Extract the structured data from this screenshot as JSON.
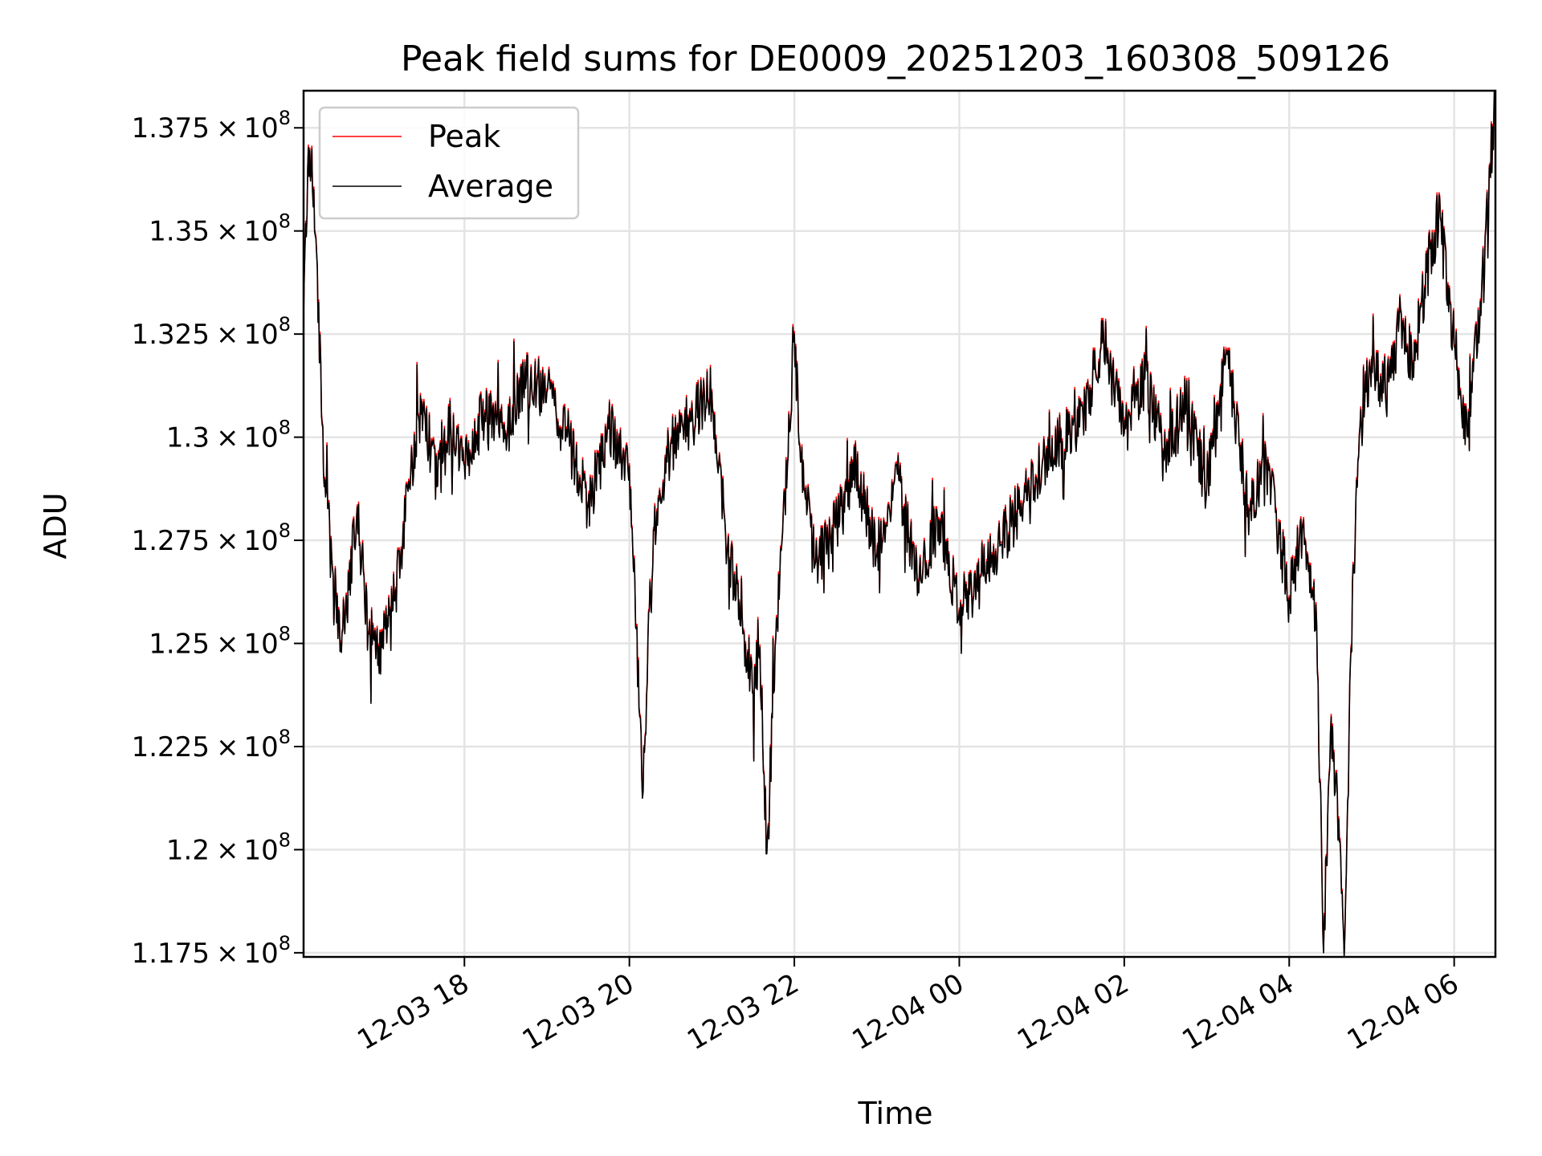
{
  "chart_data": {
    "type": "line",
    "title": "Peak field sums for DE0009_20251203_160308_509126",
    "xlabel": "Time",
    "ylabel": "ADU",
    "grid": true,
    "legend_position": "top-left",
    "xlim": [
      "2025-12-03 16:03",
      "2025-12-04 06:30"
    ],
    "ylim": [
      117400000,
      138400000
    ],
    "x_ticks": [
      {
        "value": "2025-12-03 18:00",
        "label": "12-03 18"
      },
      {
        "value": "2025-12-03 20:00",
        "label": "12-03 20"
      },
      {
        "value": "2025-12-03 22:00",
        "label": "12-03 22"
      },
      {
        "value": "2025-12-04 00:00",
        "label": "12-04 00"
      },
      {
        "value": "2025-12-04 02:00",
        "label": "12-04 02"
      },
      {
        "value": "2025-12-04 04:00",
        "label": "12-04 04"
      },
      {
        "value": "2025-12-04 06:00",
        "label": "12-04 06"
      }
    ],
    "y_ticks": [
      {
        "value": 117500000,
        "mantissa": "1.175",
        "exponent": "8"
      },
      {
        "value": 120000000,
        "mantissa": "1.2",
        "exponent": "8"
      },
      {
        "value": 122500000,
        "mantissa": "1.225",
        "exponent": "8"
      },
      {
        "value": 125000000,
        "mantissa": "1.25",
        "exponent": "8"
      },
      {
        "value": 127500000,
        "mantissa": "1.275",
        "exponent": "8"
      },
      {
        "value": 130000000,
        "mantissa": "1.3",
        "exponent": "8"
      },
      {
        "value": 132500000,
        "mantissa": "1.325",
        "exponent": "8"
      },
      {
        "value": 135000000,
        "mantissa": "1.35",
        "exponent": "8"
      },
      {
        "value": 137500000,
        "mantissa": "1.375",
        "exponent": "8"
      }
    ],
    "times_symbol": "×",
    "exponent_base": "10",
    "series": [
      {
        "name": "Peak",
        "color": "#ff0000",
        "offset_above_average": 60000,
        "x": [
          "2025-12-03 16:03",
          "2025-12-03 16:06",
          "2025-12-03 16:09",
          "2025-12-03 16:12",
          "2025-12-03 16:18",
          "2025-12-03 16:24",
          "2025-12-03 16:30",
          "2025-12-03 16:36",
          "2025-12-03 16:42",
          "2025-12-03 16:50",
          "2025-12-03 17:00",
          "2025-12-03 17:10",
          "2025-12-03 17:20",
          "2025-12-03 17:30",
          "2025-12-03 17:40",
          "2025-12-03 17:50",
          "2025-12-03 18:00",
          "2025-12-03 18:15",
          "2025-12-03 18:30",
          "2025-12-03 18:45",
          "2025-12-03 19:00",
          "2025-12-03 19:15",
          "2025-12-03 19:30",
          "2025-12-03 19:45",
          "2025-12-03 20:00",
          "2025-12-03 20:10",
          "2025-12-03 20:15",
          "2025-12-03 20:20",
          "2025-12-03 20:30",
          "2025-12-03 20:45",
          "2025-12-03 21:00",
          "2025-12-03 21:10",
          "2025-12-03 21:20",
          "2025-12-03 21:30",
          "2025-12-03 21:35",
          "2025-12-03 21:40",
          "2025-12-03 21:45",
          "2025-12-03 21:50",
          "2025-12-03 21:55",
          "2025-12-03 22:00",
          "2025-12-03 22:05",
          "2025-12-03 22:15",
          "2025-12-03 22:30",
          "2025-12-03 22:45",
          "2025-12-03 23:00",
          "2025-12-03 23:15",
          "2025-12-03 23:30",
          "2025-12-03 23:45",
          "2025-12-04 00:00",
          "2025-12-04 00:15",
          "2025-12-04 00:30",
          "2025-12-04 00:45",
          "2025-12-04 01:00",
          "2025-12-04 01:15",
          "2025-12-04 01:30",
          "2025-12-04 01:45",
          "2025-12-04 02:00",
          "2025-12-04 02:15",
          "2025-12-04 02:30",
          "2025-12-04 02:45",
          "2025-12-04 03:00",
          "2025-12-04 03:15",
          "2025-12-04 03:30",
          "2025-12-04 03:45",
          "2025-12-04 04:00",
          "2025-12-04 04:10",
          "2025-12-04 04:20",
          "2025-12-04 04:25",
          "2025-12-04 04:30",
          "2025-12-04 04:35",
          "2025-12-04 04:40",
          "2025-12-04 04:45",
          "2025-12-04 04:50",
          "2025-12-04 04:55",
          "2025-12-04 05:00",
          "2025-12-04 05:10",
          "2025-12-04 05:20",
          "2025-12-04 05:30",
          "2025-12-04 05:40",
          "2025-12-04 05:50",
          "2025-12-04 06:00",
          "2025-12-04 06:10",
          "2025-12-04 06:20",
          "2025-12-04 06:30"
        ],
        "values": [
          133000000,
          136800000,
          137300000,
          135000000,
          129000000,
          127000000,
          125200000,
          126500000,
          128500000,
          125400000,
          125100000,
          126500000,
          129000000,
          130900000,
          129000000,
          130500000,
          129500000,
          130800000,
          130300000,
          131600000,
          131300000,
          130200000,
          128500000,
          130400000,
          129500000,
          121500000,
          126700000,
          128400000,
          130000000,
          130600000,
          131300000,
          127800000,
          126200000,
          124000000,
          125100000,
          119950000,
          124000000,
          127500000,
          129500000,
          132800000,
          129600000,
          127100000,
          128000000,
          129400000,
          127300000,
          129300000,
          126700000,
          128200000,
          126000000,
          126800000,
          127600000,
          128600000,
          129400000,
          130100000,
          130700000,
          132600000,
          130300000,
          131600000,
          129800000,
          131000000,
          129000000,
          132200000,
          128500000,
          129400000,
          126300000,
          128100000,
          125600000,
          117600000,
          123000000,
          121500000,
          117400000,
          125100000,
          129600000,
          131100000,
          132100000,
          131200000,
          133100000,
          132000000,
          134300000,
          135600000,
          132400000,
          130200000,
          133900000,
          138400000
        ]
      },
      {
        "name": "Average",
        "color": "#000000",
        "x": [
          "2025-12-03 16:03",
          "2025-12-03 16:06",
          "2025-12-03 16:09",
          "2025-12-03 16:12",
          "2025-12-03 16:18",
          "2025-12-03 16:24",
          "2025-12-03 16:30",
          "2025-12-03 16:36",
          "2025-12-03 16:42",
          "2025-12-03 16:50",
          "2025-12-03 17:00",
          "2025-12-03 17:10",
          "2025-12-03 17:20",
          "2025-12-03 17:30",
          "2025-12-03 17:40",
          "2025-12-03 17:50",
          "2025-12-03 18:00",
          "2025-12-03 18:15",
          "2025-12-03 18:30",
          "2025-12-03 18:45",
          "2025-12-03 19:00",
          "2025-12-03 19:15",
          "2025-12-03 19:30",
          "2025-12-03 19:45",
          "2025-12-03 20:00",
          "2025-12-03 20:10",
          "2025-12-03 20:15",
          "2025-12-03 20:20",
          "2025-12-03 20:30",
          "2025-12-03 20:45",
          "2025-12-03 21:00",
          "2025-12-03 21:10",
          "2025-12-03 21:20",
          "2025-12-03 21:30",
          "2025-12-03 21:35",
          "2025-12-03 21:40",
          "2025-12-03 21:45",
          "2025-12-03 21:50",
          "2025-12-03 21:55",
          "2025-12-03 22:00",
          "2025-12-03 22:05",
          "2025-12-03 22:15",
          "2025-12-03 22:30",
          "2025-12-03 22:45",
          "2025-12-03 23:00",
          "2025-12-03 23:15",
          "2025-12-03 23:30",
          "2025-12-03 23:45",
          "2025-12-04 00:00",
          "2025-12-04 00:15",
          "2025-12-04 00:30",
          "2025-12-04 00:45",
          "2025-12-04 01:00",
          "2025-12-04 01:15",
          "2025-12-04 01:30",
          "2025-12-04 01:45",
          "2025-12-04 02:00",
          "2025-12-04 02:15",
          "2025-12-04 02:30",
          "2025-12-04 02:45",
          "2025-12-04 03:00",
          "2025-12-04 03:15",
          "2025-12-04 03:30",
          "2025-12-04 03:45",
          "2025-12-04 04:00",
          "2025-12-04 04:10",
          "2025-12-04 04:20",
          "2025-12-04 04:25",
          "2025-12-04 04:30",
          "2025-12-04 04:35",
          "2025-12-04 04:40",
          "2025-12-04 04:45",
          "2025-12-04 04:50",
          "2025-12-04 04:55",
          "2025-12-04 05:00",
          "2025-12-04 05:10",
          "2025-12-04 05:20",
          "2025-12-04 05:30",
          "2025-12-04 05:40",
          "2025-12-04 05:50",
          "2025-12-04 06:00",
          "2025-12-04 06:10",
          "2025-12-04 06:20",
          "2025-12-04 06:30"
        ],
        "values": [
          132900000,
          136500000,
          137000000,
          134800000,
          128800000,
          126800000,
          125000000,
          126300000,
          128300000,
          125200000,
          124900000,
          126300000,
          128800000,
          130700000,
          128800000,
          130300000,
          129300000,
          130600000,
          130100000,
          131400000,
          131100000,
          130000000,
          128300000,
          130200000,
          129300000,
          121400000,
          126500000,
          128200000,
          129800000,
          130400000,
          131100000,
          127600000,
          126000000,
          123800000,
          124900000,
          119900000,
          123800000,
          127300000,
          129300000,
          132500000,
          129400000,
          126900000,
          127800000,
          129200000,
          127100000,
          129100000,
          126500000,
          128000000,
          125800000,
          126600000,
          127400000,
          128400000,
          129200000,
          129900000,
          130500000,
          132400000,
          130100000,
          131400000,
          129600000,
          130800000,
          128800000,
          132000000,
          128300000,
          129200000,
          126100000,
          127900000,
          125400000,
          117500000,
          122800000,
          121300000,
          117400000,
          124900000,
          129400000,
          130900000,
          131900000,
          131000000,
          132900000,
          131800000,
          134000000,
          135300000,
          132200000,
          130000000,
          133600000,
          138200000
        ]
      }
    ]
  }
}
